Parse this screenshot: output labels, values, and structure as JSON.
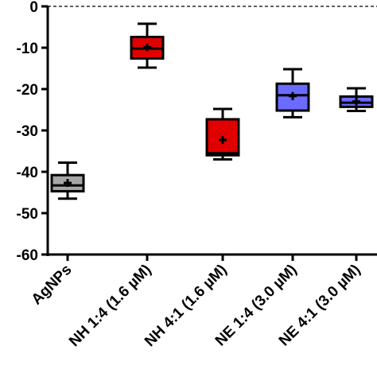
{
  "chart_data": {
    "type": "box",
    "title": "",
    "xlabel": "",
    "ylabel": "",
    "ylim": [
      -60,
      0
    ],
    "yticks": [
      0,
      -10,
      -20,
      -30,
      -40,
      -50,
      -60
    ],
    "zero_reference_line": "dashed",
    "grid": false,
    "categories": [
      "AgNPs",
      "NH 1:4 (1.6 µM)",
      "NH 4:1 (1.6 µM)",
      "NE 1:4 (3.0 µM)",
      "NE 4:1 (3.0 µM)"
    ],
    "boxes": [
      {
        "min": -46.5,
        "q1": -44.7,
        "median": -43.3,
        "q3": -40.8,
        "max": -37.8,
        "mean": -42.7,
        "color": "#a6a6a6"
      },
      {
        "min": -14.8,
        "q1": -12.6,
        "median": -10.2,
        "q3": -7.4,
        "max": -4.2,
        "mean": -9.9,
        "color": "#e00000"
      },
      {
        "min": -37.0,
        "q1": -36.0,
        "median": -35.5,
        "q3": -27.3,
        "max": -24.8,
        "mean": -32.3,
        "color": "#e00000"
      },
      {
        "min": -26.8,
        "q1": -25.2,
        "median": -21.5,
        "q3": -18.7,
        "max": -15.2,
        "mean": -21.7,
        "color": "#6b6bff"
      },
      {
        "min": -25.3,
        "q1": -24.3,
        "median": -23.3,
        "q3": -21.8,
        "max": -19.8,
        "mean": -23.0,
        "color": "#6b6bff"
      }
    ]
  }
}
